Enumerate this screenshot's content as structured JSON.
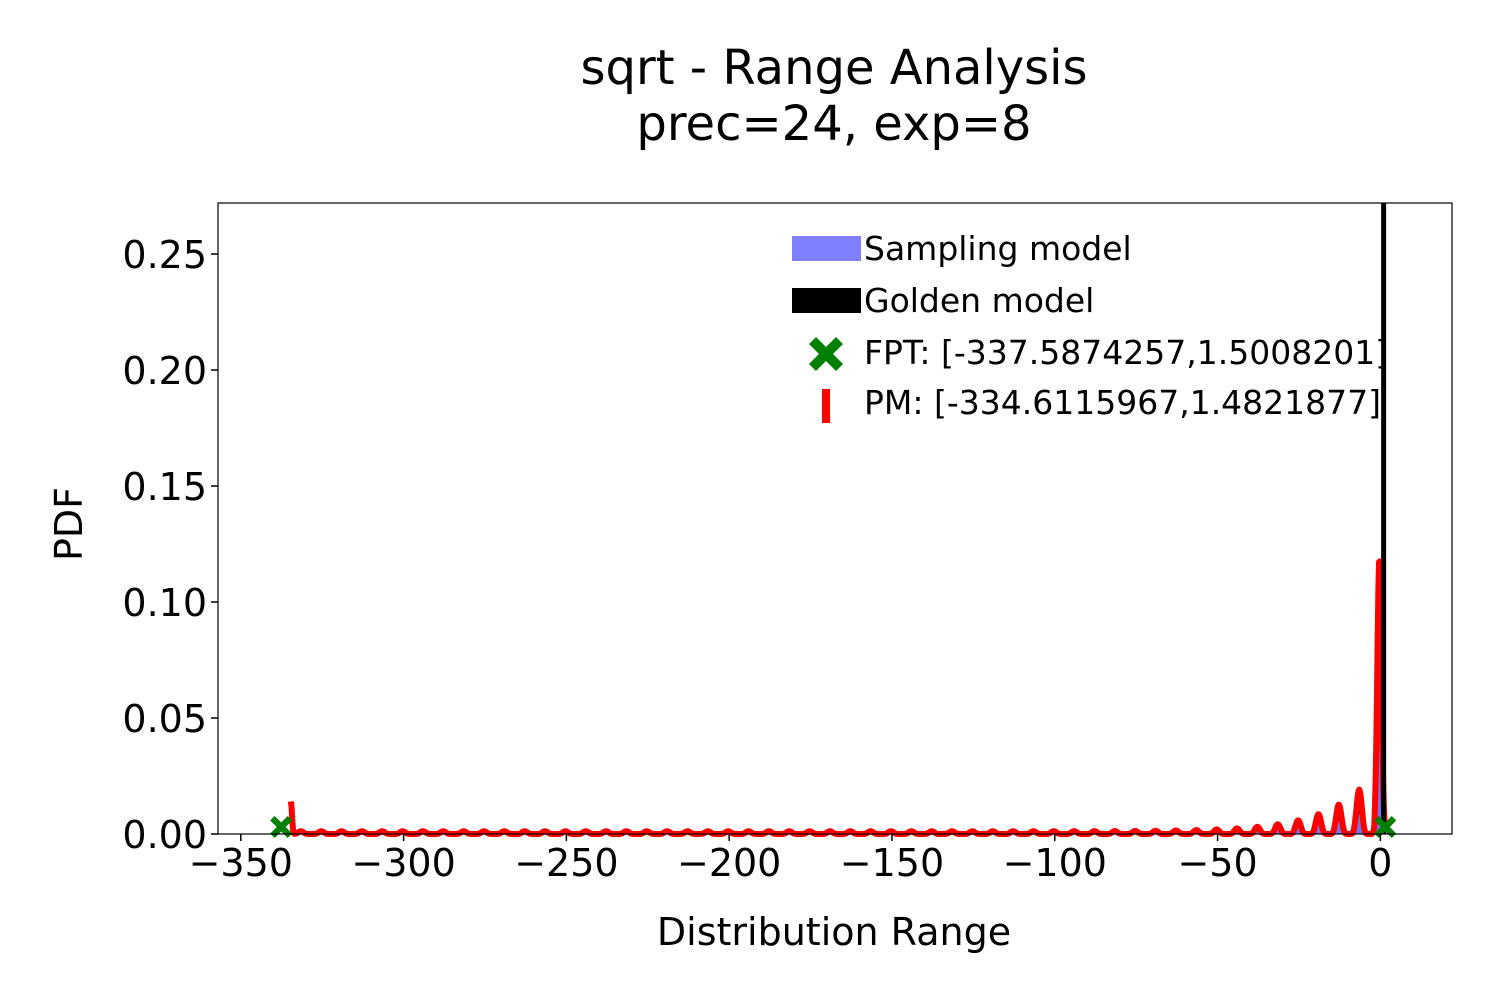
{
  "chart_data": {
    "type": "line",
    "title": "sqrt - Range Analysis",
    "subtitle": "prec=24, exp=8",
    "xlabel": "Distribution Range",
    "ylabel": "PDF",
    "xlim": [
      -357,
      22
    ],
    "ylim": [
      0,
      0.272
    ],
    "grid": false,
    "legend_position": "top-right",
    "xticks": [
      {
        "value": -350,
        "label": "−350"
      },
      {
        "value": -300,
        "label": "−300"
      },
      {
        "value": -250,
        "label": "−250"
      },
      {
        "value": -200,
        "label": "−200"
      },
      {
        "value": -150,
        "label": "−150"
      },
      {
        "value": -100,
        "label": "−100"
      },
      {
        "value": -50,
        "label": "−50"
      },
      {
        "value": 0,
        "label": "0"
      }
    ],
    "yticks": [
      {
        "value": 0.0,
        "label": "0.00"
      },
      {
        "value": 0.05,
        "label": "0.05"
      },
      {
        "value": 0.1,
        "label": "0.10"
      },
      {
        "value": 0.15,
        "label": "0.15"
      },
      {
        "value": 0.2,
        "label": "0.20"
      },
      {
        "value": 0.25,
        "label": "0.25"
      }
    ],
    "series": [
      {
        "name": "Sampling model",
        "kind": "area",
        "color": "#8080ff",
        "dark_color": "#000080",
        "x_range": [
          -334.6,
          1.48
        ],
        "peak": {
          "x": -0.3,
          "y": 0.09
        }
      },
      {
        "name": "Golden model",
        "kind": "vline",
        "color": "#000000",
        "x": 1.0
      },
      {
        "name": "FPT: [-337.5874257,1.5008201]",
        "kind": "markers",
        "marker": "X",
        "color": "#008000",
        "x": [
          -337.5874257,
          1.5008201
        ],
        "y": [
          0.003,
          0.003
        ]
      },
      {
        "name": "PM: [-334.6115967,1.4821877]",
        "kind": "line",
        "color": "#ff0000",
        "x_range": [
          -334.6115967,
          1.4821877
        ],
        "peak": {
          "x": -0.3,
          "y": 0.119
        },
        "left_spike": {
          "x": -334.6,
          "y": 0.014
        }
      }
    ]
  }
}
